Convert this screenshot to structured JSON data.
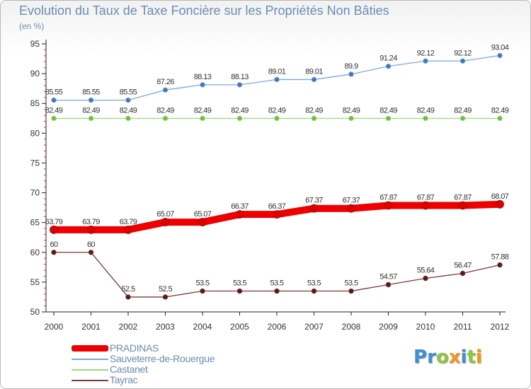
{
  "title": "Evolution du Taux de Taxe Foncière sur les Propriétés Non Bâties",
  "subtitle": "(en %)",
  "logo": {
    "letters": [
      {
        "ch": "P",
        "color": "#3d8fd6"
      },
      {
        "ch": "r",
        "color": "#3d8fd6"
      },
      {
        "ch": "o",
        "color": "#8dc63f"
      },
      {
        "ch": "x",
        "color": "#f7941d"
      },
      {
        "ch": "i",
        "color": "#3d8fd6"
      },
      {
        "ch": "t",
        "color": "#8dc63f"
      },
      {
        "ch": "i",
        "color": "#f7941d"
      }
    ]
  },
  "chart_data": {
    "type": "line",
    "title": "Evolution du Taux de Taxe Foncière sur les Propriétés Non Bâties",
    "ylabel": "(en %)",
    "xlabel": "",
    "ylim": [
      50,
      95
    ],
    "yticks": [
      50,
      55,
      60,
      65,
      70,
      75,
      80,
      85,
      90,
      95
    ],
    "x": [
      "2000",
      "2001",
      "2002",
      "2003",
      "2004",
      "2005",
      "2006",
      "2007",
      "2008",
      "2009",
      "2010",
      "2011",
      "2012"
    ],
    "grid": false,
    "legend_position": "bottom-left",
    "series": [
      {
        "name": "PRADINAS",
        "color": "#ee0000",
        "marker": "#dd0000",
        "width": 10,
        "values": [
          63.79,
          63.79,
          63.79,
          65.07,
          65.07,
          66.37,
          66.37,
          67.37,
          67.37,
          67.87,
          67.87,
          67.87,
          68.07
        ],
        "labels": [
          "63.79",
          "63.79",
          "63.79",
          "65.07",
          "65.07",
          "66.37",
          "66.37",
          "67.37",
          "67.37",
          "67.87",
          "67.87",
          "67.87",
          "68.07"
        ]
      },
      {
        "name": "Sauveterre-de-Rouergue",
        "color": "#7fa8d8",
        "marker": "#3d79c0",
        "width": 1.3,
        "values": [
          85.55,
          85.55,
          85.55,
          87.26,
          88.13,
          88.13,
          89.01,
          89.01,
          89.9,
          91.24,
          92.12,
          92.12,
          93.04
        ],
        "labels": [
          "85.55",
          "85.55",
          "85.55",
          "87.26",
          "88.13",
          "88.13",
          "89.01",
          "89.01",
          "89.9",
          "91.24",
          "92.12",
          "92.12",
          "93.04"
        ]
      },
      {
        "name": "Castanet",
        "color": "#99dd77",
        "marker": "#6abf3f",
        "width": 1.3,
        "values": [
          82.49,
          82.49,
          82.49,
          82.49,
          82.49,
          82.49,
          82.49,
          82.49,
          82.49,
          82.49,
          82.49,
          82.49,
          82.49
        ],
        "labels": [
          "82.49",
          "82.49",
          "82.49",
          "82.49",
          "82.49",
          "82.49",
          "82.49",
          "82.49",
          "82.49",
          "82.49",
          "82.49",
          "82.49",
          "82.49"
        ]
      },
      {
        "name": "Tayrac",
        "color": "#7b3a3a",
        "marker": "#5a1a1a",
        "width": 1.3,
        "values": [
          60,
          60,
          52.5,
          52.5,
          53.5,
          53.5,
          53.5,
          53.5,
          53.5,
          54.57,
          55.64,
          56.47,
          57.88
        ],
        "labels": [
          "60",
          "60",
          "52.5",
          "52.5",
          "53.5",
          "53.5",
          "53.5",
          "53.5",
          "53.5",
          "54.57",
          "55.64",
          "56.47",
          "57.88"
        ]
      }
    ]
  }
}
